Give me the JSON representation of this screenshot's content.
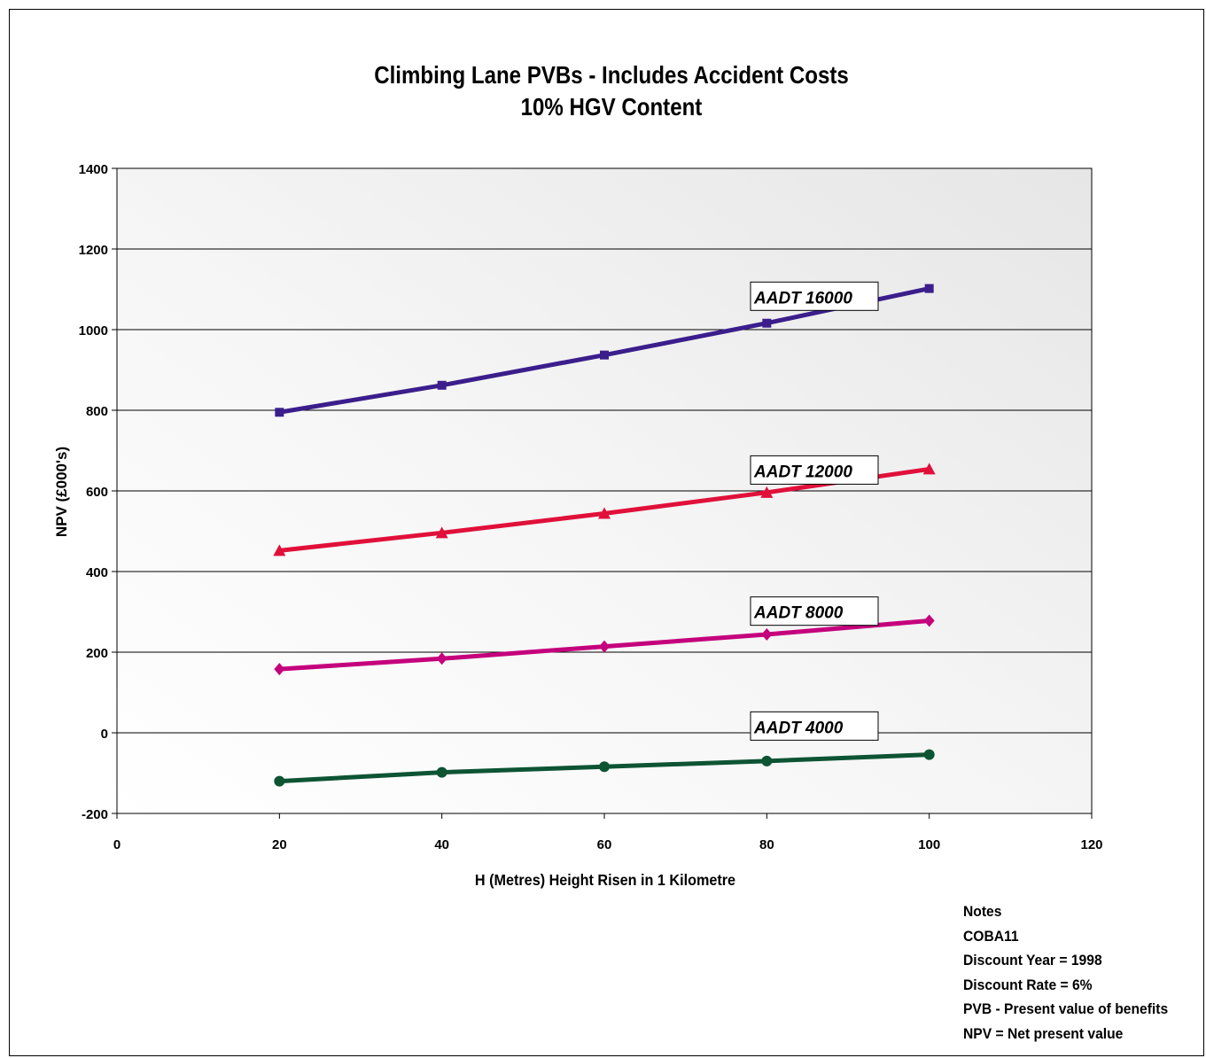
{
  "chart_data": {
    "type": "line",
    "title": "Climbing Lane PVBs - Includes Accident Costs",
    "subtitle": "10% HGV Content",
    "xlabel": "H (Metres) Height Risen in 1 Kilometre",
    "ylabel": "NPV (£000's)",
    "xlim": [
      0,
      120
    ],
    "ylim": [
      -200,
      1400
    ],
    "x_ticks": [
      0,
      20,
      40,
      60,
      80,
      100,
      120
    ],
    "y_ticks": [
      -200,
      0,
      200,
      400,
      600,
      800,
      1000,
      1200,
      1400
    ],
    "grid": "horizontal",
    "series": [
      {
        "name": "AADT 16000",
        "color": "#3b1e8c",
        "marker": "square",
        "x": [
          20,
          40,
          60,
          80,
          100
        ],
        "y": [
          795,
          862,
          937,
          1016,
          1102
        ]
      },
      {
        "name": "AADT 12000",
        "color": "#e0103a",
        "marker": "triangle",
        "x": [
          20,
          40,
          60,
          80,
          100
        ],
        "y": [
          452,
          496,
          544,
          596,
          654
        ]
      },
      {
        "name": "AADT 8000",
        "color": "#c4007c",
        "marker": "diamond",
        "x": [
          20,
          40,
          60,
          80,
          100
        ],
        "y": [
          158,
          184,
          214,
          244,
          278
        ]
      },
      {
        "name": "AADT 4000",
        "color": "#0d5433",
        "marker": "circle",
        "x": [
          20,
          40,
          60,
          80,
          100
        ],
        "y": [
          -120,
          -98,
          -84,
          -70,
          -54
        ]
      }
    ],
    "annotations": [
      {
        "text": "AADT 16000",
        "series": 0,
        "x": 78,
        "y": 1118
      },
      {
        "text": "AADT 12000",
        "series": 1,
        "x": 78,
        "y": 687
      },
      {
        "text": "AADT 8000",
        "series": 2,
        "x": 78,
        "y": 337
      },
      {
        "text": "AADT 4000",
        "series": 3,
        "x": 78,
        "y": 52
      }
    ]
  },
  "notes": [
    "Notes",
    "COBA11",
    "Discount Year = 1998",
    "Discount Rate = 6%",
    "PVB - Present value of benefits",
    "NPV = Net present value"
  ]
}
